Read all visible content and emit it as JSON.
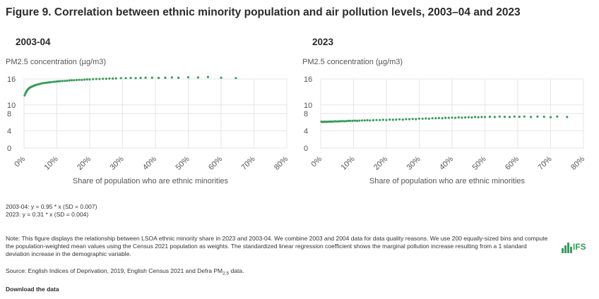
{
  "figure": {
    "title": "Figure 9. Correlation between ethnic minority population and air pollution levels, 2003–04 and 2023"
  },
  "chart_data": [
    {
      "type": "scatter",
      "title": "2003-04",
      "ylabel": "PM2.5 concentration (µg/m3)",
      "xlabel": "Share of population who are ethnic minorities",
      "x_ticks": [
        "0%",
        "10%",
        "20%",
        "30%",
        "40%",
        "50%",
        "60%",
        "70%",
        "80%"
      ],
      "y_ticks": [
        "0",
        "4",
        "8",
        "10",
        "16"
      ],
      "xlim": [
        0,
        80
      ],
      "ylim": [
        0,
        16
      ],
      "grid": true,
      "color": "#3a9b5c",
      "series": [
        {
          "name": "2003-04",
          "x": [
            0.2,
            0.4,
            0.6,
            0.8,
            1.0,
            1.2,
            1.4,
            1.6,
            1.8,
            2.0,
            2.3,
            2.6,
            2.9,
            3.2,
            3.5,
            3.8,
            4.2,
            4.6,
            5.0,
            5.5,
            6.0,
            6.5,
            7.0,
            7.5,
            8.0,
            8.6,
            9.2,
            9.8,
            10.4,
            11.0,
            11.7,
            12.4,
            13.1,
            13.8,
            14.5,
            15.2,
            16.0,
            16.8,
            17.6,
            18.4,
            19.2,
            20.0,
            21.0,
            22.0,
            23.0,
            24.0,
            25.0,
            26.0,
            27.0,
            28.0,
            29.5,
            31.0,
            32.5,
            34.0,
            35.5,
            37.0,
            39.0,
            41.0,
            43.0,
            45.0,
            47.0,
            50.0,
            53.0,
            56.0,
            60.0,
            64.5
          ],
          "y": [
            12.2,
            12.6,
            12.9,
            13.2,
            13.4,
            13.6,
            13.75,
            13.9,
            14.0,
            14.1,
            14.2,
            14.3,
            14.4,
            14.5,
            14.6,
            14.65,
            14.75,
            14.8,
            14.9,
            15.0,
            15.05,
            15.1,
            15.15,
            15.2,
            15.25,
            15.3,
            15.35,
            15.4,
            15.45,
            15.5,
            15.55,
            15.55,
            15.6,
            15.65,
            15.7,
            15.7,
            15.75,
            15.8,
            15.8,
            15.85,
            15.9,
            15.9,
            15.95,
            16.0,
            16.0,
            16.05,
            16.05,
            16.1,
            16.1,
            16.15,
            16.2,
            16.2,
            16.25,
            16.2,
            16.25,
            16.3,
            16.3,
            16.25,
            16.3,
            16.35,
            16.3,
            16.4,
            16.35,
            16.45,
            16.3,
            16.2
          ]
        }
      ],
      "equation": "2003-04: y = 0.95 * x (SD = 0.007)"
    },
    {
      "type": "scatter",
      "title": "2023",
      "ylabel": "PM2.5 concentration (µg/m3)",
      "xlabel": "Share of population who are ethnic minorities",
      "x_ticks": [
        "0%",
        "10%",
        "20%",
        "30%",
        "40%",
        "50%",
        "60%",
        "70%",
        "80%"
      ],
      "y_ticks": [
        "0",
        "4",
        "8",
        "10",
        "16"
      ],
      "xlim": [
        0,
        80
      ],
      "ylim": [
        0,
        16
      ],
      "grid": true,
      "color": "#3a9b5c",
      "series": [
        {
          "name": "2023",
          "x": [
            0.2,
            0.5,
            0.8,
            1.1,
            1.4,
            1.7,
            2.0,
            2.4,
            2.8,
            3.2,
            3.6,
            4.0,
            4.5,
            5.0,
            5.5,
            6.0,
            6.6,
            7.2,
            7.8,
            8.4,
            9.0,
            9.7,
            10.4,
            11.1,
            11.8,
            12.6,
            13.4,
            14.2,
            15.0,
            16.0,
            17.0,
            18.0,
            19.0,
            20.0,
            21.0,
            22.0,
            23.0,
            24.0,
            25.0,
            26.0,
            27.0,
            28.0,
            29.0,
            30.0,
            31.0,
            32.0,
            33.0,
            34.0,
            35.0,
            36.0,
            37.0,
            38.0,
            39.0,
            40.0,
            41.0,
            42.0,
            43.0,
            44.0,
            45.0,
            46.0,
            47.0,
            48.0,
            49.0,
            50.0,
            51.5,
            53.0,
            54.5,
            56.0,
            57.5,
            59.0,
            60.5,
            62.0,
            64.0,
            66.0,
            68.0,
            70.0,
            72.0,
            75.0
          ],
          "y": [
            6.1,
            6.05,
            6.05,
            6.1,
            6.1,
            6.05,
            6.1,
            6.1,
            6.15,
            6.1,
            6.15,
            6.15,
            6.2,
            6.15,
            6.2,
            6.2,
            6.25,
            6.2,
            6.25,
            6.3,
            6.3,
            6.3,
            6.35,
            6.3,
            6.35,
            6.4,
            6.4,
            6.45,
            6.4,
            6.45,
            6.5,
            6.5,
            6.55,
            6.5,
            6.6,
            6.55,
            6.6,
            6.65,
            6.6,
            6.7,
            6.7,
            6.75,
            6.7,
            6.8,
            6.8,
            6.85,
            6.8,
            6.9,
            6.9,
            6.95,
            6.9,
            7.0,
            7.0,
            7.05,
            7.0,
            7.1,
            7.05,
            7.1,
            7.15,
            7.1,
            7.2,
            7.15,
            7.2,
            7.2,
            7.25,
            7.2,
            7.3,
            7.25,
            7.2,
            7.3,
            7.25,
            7.3,
            7.2,
            7.3,
            7.25,
            7.15,
            7.3,
            7.2
          ]
        }
      ],
      "equation": "2023: y = 0.31 * x (SD = 0.004)"
    }
  ],
  "note": "Note: This figure displays the relationship between LSOA ethnic minority share in 2023 and 2003-04. We combine 2003 and 2004 data for data quality reasons. We use 200 equally-sized bins and compute the population-weighted mean values using the Census 2021 population as weights. The standardized linear regression coefficient shows the marginal pollution increase resulting from a 1 standard deviation increase in the demographic variable.",
  "source": {
    "prefix": "Source: English Indices of Deprivation, 2019, English Census 2021 and Defra PM",
    "subscript": "2.5",
    "suffix": " data."
  },
  "download_label": "Download the data",
  "logo": {
    "text": "IFS",
    "color": "#3a9b5c"
  }
}
